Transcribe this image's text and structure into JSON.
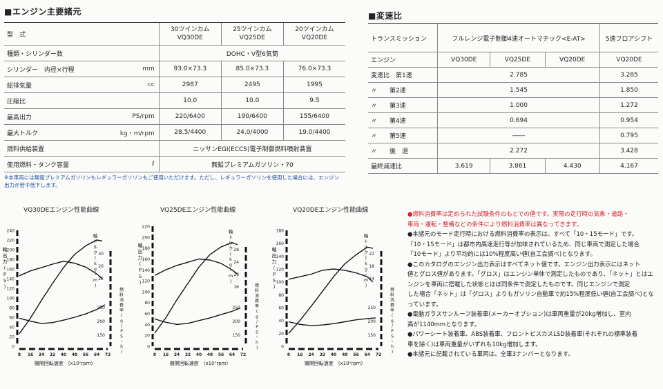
{
  "engine_specs": {
    "section_title": "■エンジン主要諸元",
    "model_label": "型　式",
    "models": [
      {
        "line1": "30ツインカム",
        "line2": "VQ30DE"
      },
      {
        "line1": "25ツインカム",
        "line2": "VQ25DE"
      },
      {
        "line1": "20ツインカム",
        "line2": "VQ20DE"
      }
    ],
    "rows": [
      {
        "label": "種類・シリンダー数",
        "unit": "",
        "span": "DOHC・V型6気筒"
      },
      {
        "label": "シリンダー　内径×行程",
        "unit": "mm",
        "values": [
          "93.0×73.3",
          "85.0×73.3",
          "76.0×73.3"
        ]
      },
      {
        "label": "総排気量",
        "unit": "cc",
        "values": [
          "2987",
          "2495",
          "1995"
        ]
      },
      {
        "label": "圧縮比",
        "unit": "",
        "values": [
          "10.0",
          "10.0",
          "9.5"
        ]
      },
      {
        "label": "最高出力",
        "unit": "PS/rpm",
        "values": [
          "220/6400",
          "190/6400",
          "155/6400"
        ]
      },
      {
        "label": "最大トルク",
        "unit": "kg・m/rpm",
        "values": [
          "28.5/4400",
          "24.0/4000",
          "19.0/4400"
        ]
      },
      {
        "label": "燃料供給装置",
        "unit": "",
        "span": "ニッサンEGI(ECCS)電子制御燃料噴射装置"
      },
      {
        "label": "使用燃料・タンク容量",
        "unit": "ℓ",
        "span": "無鉛プレミアムガソリン・70"
      }
    ],
    "footnote_line1": "※本車両には無鉛プレミアムガソリンもレギュラーガソリンもご使用いただけます。ただし、レギュラーガソリンを使用した場合には、エンジン",
    "footnote_line2": "出力が若干低下します。"
  },
  "transmission": {
    "section_title": "■変速比",
    "transmission_label": "トランスミッション",
    "at_label": "フルレンジ電子制御4速オートマチック<E-AT>",
    "mt_label": "5速フロアシフト",
    "engine_label": "エンジン",
    "engines": [
      "VQ30DE",
      "VQ25DE",
      "VQ20DE",
      "VQ20DE"
    ],
    "rows": [
      {
        "label": "変速比　第1速",
        "at": "2.785",
        "mt": "3.285"
      },
      {
        "label": "〃　　第2速",
        "at": "1.545",
        "mt": "1.850"
      },
      {
        "label": "〃　　第3速",
        "at": "1.000",
        "mt": "1.272"
      },
      {
        "label": "〃　　第4速",
        "at": "0.694",
        "mt": "0.954"
      },
      {
        "label": "〃　　第5速",
        "at": "――",
        "mt": "0.795"
      },
      {
        "label": "〃　　後　退",
        "at": "2.272",
        "mt": "3.428"
      }
    ],
    "final": {
      "label": "最終減速比",
      "values": [
        "3.619",
        "3.861",
        "4.430",
        "4.167"
      ]
    }
  },
  "chart_data": [
    {
      "type": "line",
      "title": "VQ30DEエンジン性能曲線",
      "xlabel": "機関回転速度　(x10²rpm)",
      "x_ticks": [
        "8",
        "16",
        "24",
        "32",
        "40",
        "48",
        "56",
        "64",
        "72"
      ],
      "left_axis": {
        "label": "軸出力(PS)",
        "range": [
          0,
          240
        ],
        "ticks": [
          "0",
          "20",
          "40",
          "60",
          "80",
          "100",
          "120",
          "140",
          "160",
          "180",
          "200",
          "220",
          "240"
        ]
      },
      "torque_axis": {
        "label": "軸トルク(kg・m)",
        "ticks": [
          "30",
          "26",
          "22"
        ]
      },
      "fuel_axis": {
        "label": "燃料消費率(g/PS・h)",
        "ticks": [
          "250",
          "200",
          "150"
        ]
      },
      "series": [
        {
          "name": "power",
          "x": [
            8,
            16,
            24,
            32,
            40,
            48,
            56,
            64,
            68
          ],
          "y": [
            26,
            58,
            95,
            130,
            163,
            190,
            208,
            220,
            218
          ]
        },
        {
          "name": "torque",
          "x": [
            8,
            16,
            24,
            32,
            40,
            48,
            56,
            64,
            68
          ],
          "y": [
            146,
            156,
            163,
            170,
            176,
            172,
            164,
            150,
            140
          ]
        },
        {
          "name": "fuel",
          "x": [
            8,
            16,
            24,
            32,
            40,
            48,
            56,
            64,
            70
          ],
          "y": [
            58,
            52,
            47,
            49,
            54,
            60,
            67,
            76,
            86
          ]
        }
      ]
    },
    {
      "type": "line",
      "title": "VQ25DEエンジン性能曲線",
      "xlabel": "機関回転速度　(x10²rpm)",
      "x_ticks": [
        "8",
        "16",
        "24",
        "32",
        "40",
        "48",
        "56",
        "64",
        "72"
      ],
      "left_axis": {
        "label": "軸出力(PS)",
        "range": [
          0,
          220
        ],
        "ticks": [
          "0",
          "20",
          "40",
          "60",
          "80",
          "100",
          "120",
          "140",
          "160",
          "180",
          "200",
          "220"
        ]
      },
      "torque_axis": {
        "label": "軸トルク(kg・m)",
        "ticks": [
          "28",
          "24",
          "20",
          "16"
        ]
      },
      "fuel_axis": {
        "label": "燃料消費率(g/PS・h)",
        "ticks": [
          "250",
          "200",
          "150"
        ]
      },
      "series": [
        {
          "name": "power",
          "x": [
            8,
            16,
            24,
            32,
            40,
            48,
            56,
            64,
            68
          ],
          "y": [
            24,
            52,
            85,
            115,
            145,
            168,
            182,
            190,
            186
          ]
        },
        {
          "name": "torque",
          "x": [
            8,
            16,
            24,
            32,
            40,
            48,
            56,
            64,
            68
          ],
          "y": [
            130,
            140,
            148,
            154,
            160,
            158,
            152,
            140,
            132
          ]
        },
        {
          "name": "fuel",
          "x": [
            8,
            16,
            24,
            32,
            40,
            48,
            56,
            64,
            70
          ],
          "y": [
            50,
            44,
            40,
            42,
            47,
            52,
            58,
            64,
            70
          ]
        }
      ]
    },
    {
      "type": "line",
      "title": "VQ20DEエンジン性能曲線",
      "xlabel": "機関回転速度　(x10²rpm)",
      "x_ticks": [
        "8",
        "16",
        "24",
        "32",
        "40",
        "48",
        "56",
        "64",
        "72"
      ],
      "left_axis": {
        "label": "軸出力(PS)",
        "range": [
          0,
          180
        ],
        "ticks": [
          "0",
          "20",
          "40",
          "60",
          "80",
          "100",
          "120",
          "140",
          "160",
          "180"
        ]
      },
      "torque_axis": {
        "label": "軸トルク(kg・m)",
        "ticks": [
          "22",
          "18",
          "14"
        ]
      },
      "fuel_axis": {
        "label": "燃料消費率(g/PS・h)",
        "ticks": [
          "250",
          "200",
          "150"
        ]
      },
      "series": [
        {
          "name": "power",
          "x": [
            8,
            16,
            24,
            32,
            40,
            48,
            56,
            64,
            68
          ],
          "y": [
            20,
            40,
            62,
            85,
            108,
            128,
            142,
            154,
            152
          ]
        },
        {
          "name": "torque",
          "x": [
            8,
            16,
            24,
            32,
            40,
            48,
            56,
            64,
            68
          ],
          "y": [
            104,
            108,
            112,
            118,
            120,
            118,
            114,
            108,
            100
          ]
        },
        {
          "name": "fuel",
          "x": [
            8,
            16,
            24,
            32,
            40,
            48,
            56,
            64,
            70
          ],
          "y": [
            38,
            34,
            32,
            33,
            35,
            38,
            41,
            43,
            44
          ]
        }
      ]
    }
  ],
  "notes": [
    {
      "red": true,
      "text": "●燃料消費率は定められた試験条件のもとでの値です。実際の走行時の気象・道路・"
    },
    {
      "red": true,
      "text": "車両・運転・整備などの条件により燃料消費率は異なってきます。"
    },
    {
      "red": false,
      "text": "●本諸元のモード走行時における燃料消費率の表示は、すべて「10・15モード」です。"
    },
    {
      "red": false,
      "text": "「10・15モード」は都市内高速走行等が加味されているため、同じ車両で測定した場合"
    },
    {
      "red": false,
      "text": "「10モード」より平均的には10%程度高い値(自工会調べ)となります。"
    },
    {
      "red": false,
      "text": "●このカタログのエンジン出力表示はすべてネット値です。エンジン出力表示にはネット"
    },
    {
      "red": false,
      "text": "値とグロス値があります。「グロス」はエンジン単体で測定したものであり、「ネット」とはエ"
    },
    {
      "red": false,
      "text": "ンジンを車両に搭載した状態とほぼ同条件で測定したものです。同じエンジンで測定"
    },
    {
      "red": false,
      "text": "した場合「ネット」は「グロス」よりもガソリン自動車で約15%程度低い値(自工会調べ)とな"
    },
    {
      "red": false,
      "text": "っています。"
    },
    {
      "red": false,
      "text": "●電動ガラスサンルーフ装着車(メーカーオプション)は車両重量が20kg増加し、室内"
    },
    {
      "red": false,
      "text": "高が1140mmとなります。"
    },
    {
      "red": false,
      "text": "●パワーシート装着車、ABS装着車、フロントビスカスLSD装着車(それぞれの標準装着"
    },
    {
      "red": false,
      "text": "車を除く)は車両重量がいずれも10kg増加します。"
    },
    {
      "red": false,
      "text": "●本諸元に記載されている車両は、全車3ナンバーとなります。"
    }
  ]
}
